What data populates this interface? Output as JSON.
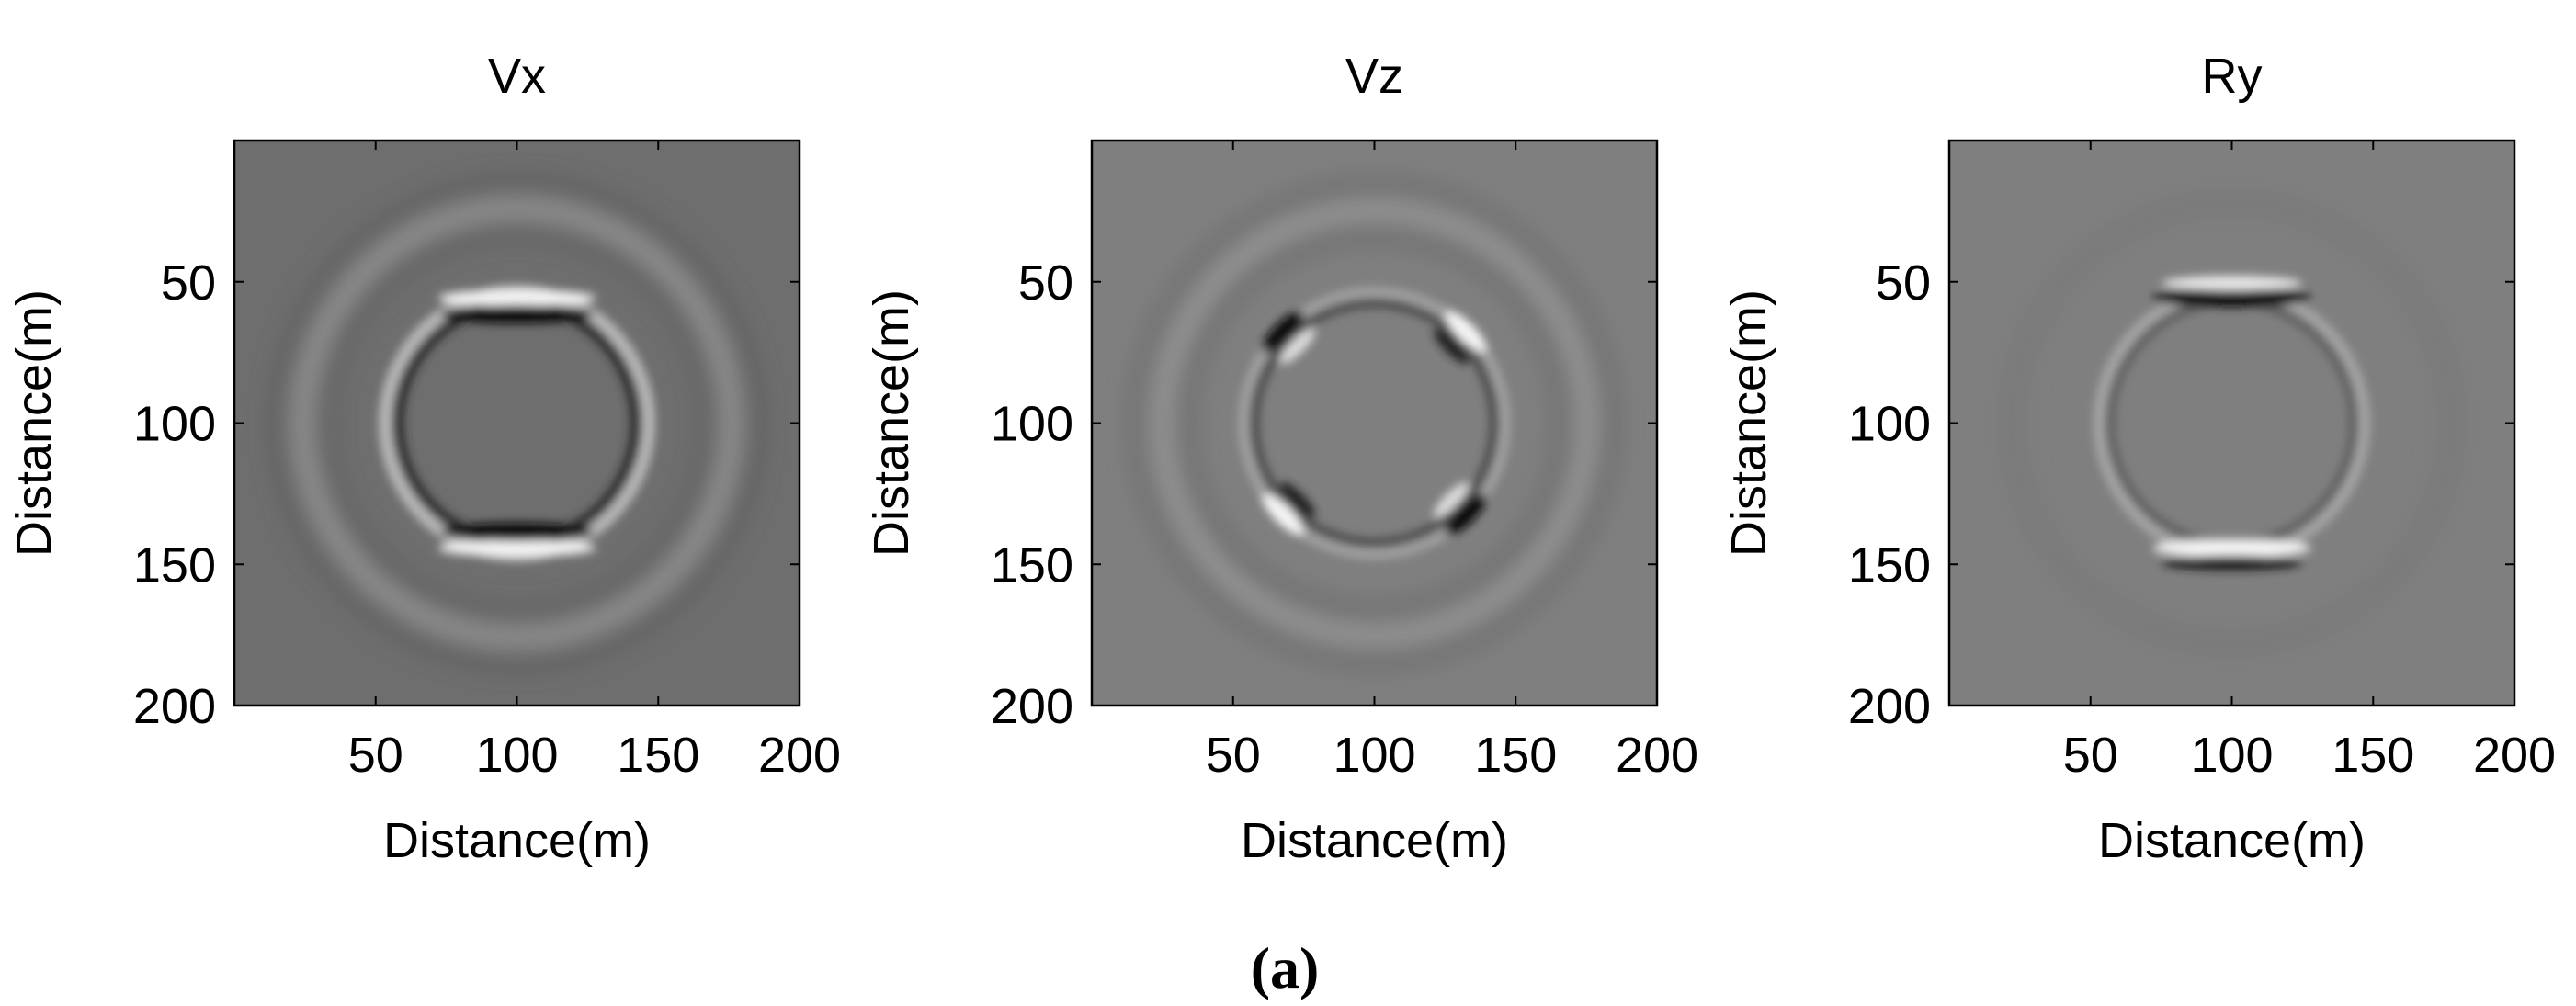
{
  "chart_data": [
    {
      "type": "heatmap",
      "title": "Vx",
      "xlabel": "Distance(m)",
      "ylabel": "Distance(m)",
      "xlim": [
        0,
        200
      ],
      "ylim": [
        200,
        0
      ],
      "x_ticks": [
        50,
        100,
        150,
        200
      ],
      "y_ticks": [
        50,
        100,
        150,
        200
      ],
      "colormap": "grayscale",
      "background_color": "#6e6e6e",
      "source_center": [
        100,
        100
      ],
      "inner_ring_radius": 45,
      "outer_ring_radius": 78,
      "polarity": "bright at top and bottom of inner ring (near x=100, z≈60 and z≈140), dark just inside; outer ring bright on left and right"
    },
    {
      "type": "heatmap",
      "title": "Vz",
      "xlabel": "Distance(m)",
      "ylabel": "Distance(m)",
      "xlim": [
        0,
        200
      ],
      "ylim": [
        200,
        0
      ],
      "x_ticks": [
        50,
        100,
        150,
        200
      ],
      "y_ticks": [
        50,
        100,
        150,
        200
      ],
      "colormap": "grayscale",
      "background_color": "#7f7f7f",
      "source_center": [
        100,
        100
      ],
      "inner_ring_radius": 45,
      "outer_ring_radius": 78,
      "polarity": "four-lobed quadrant pattern; strongest along the diagonals of the inner ring"
    },
    {
      "type": "heatmap",
      "title": "Ry",
      "xlabel": "Distance(m)",
      "ylabel": "Distance(m)",
      "xlim": [
        0,
        200
      ],
      "ylim": [
        200,
        0
      ],
      "x_ticks": [
        50,
        100,
        150,
        200
      ],
      "y_ticks": [
        50,
        100,
        150,
        200
      ],
      "colormap": "grayscale",
      "background_color": "#7f7f7f",
      "source_center": [
        100,
        100
      ],
      "inner_ring_radius": 45,
      "outer_ring_radius": 78,
      "polarity": "inner ring dark at top (z≈60) and bright at bottom (z≈140); faint outer ring"
    }
  ],
  "caption": "(a)"
}
